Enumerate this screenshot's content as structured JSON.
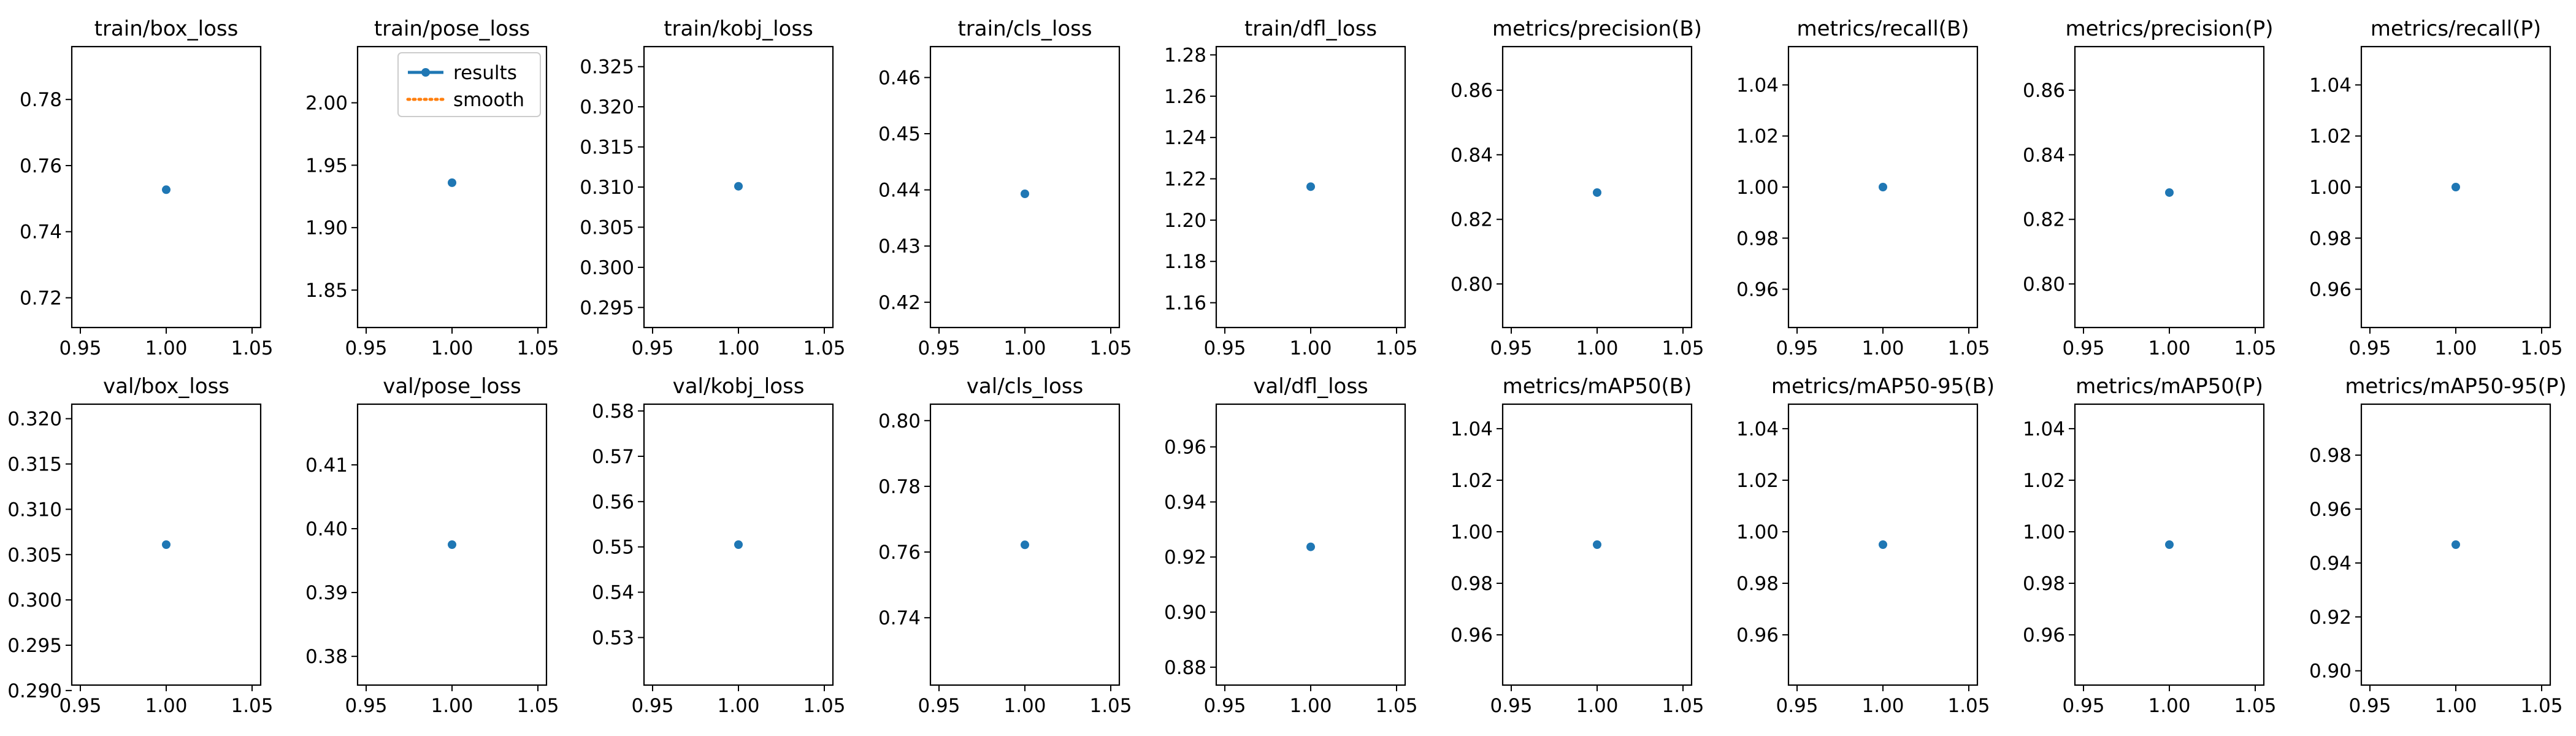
{
  "colors": {
    "results": "#1f77b4",
    "smooth": "#ff7f0e"
  },
  "legend": {
    "location": "upper-right",
    "panel_index": 1,
    "entries": [
      "results",
      "smooth"
    ]
  },
  "chart_data": [
    {
      "type": "scatter",
      "title": "train/box_loss",
      "x": [
        1.0
      ],
      "y": [
        0.7527
      ],
      "xlim": [
        0.945,
        1.055
      ],
      "ylim": [
        0.711,
        0.796
      ],
      "xticks": [
        0.95,
        1.0,
        1.05
      ],
      "yticks": [
        0.72,
        0.74,
        0.76,
        0.78
      ],
      "xtick_labels": [
        "0.95",
        "1.00",
        "1.05"
      ],
      "ytick_labels": [
        "0.72",
        "0.74",
        "0.76",
        "0.78"
      ]
    },
    {
      "type": "scatter",
      "title": "train/pose_loss",
      "x": [
        1.0
      ],
      "y": [
        1.936
      ],
      "xlim": [
        0.945,
        1.055
      ],
      "ylim": [
        1.82,
        2.045
      ],
      "xticks": [
        0.95,
        1.0,
        1.05
      ],
      "yticks": [
        1.85,
        1.9,
        1.95,
        2.0
      ],
      "xtick_labels": [
        "0.95",
        "1.00",
        "1.05"
      ],
      "ytick_labels": [
        "1.85",
        "1.90",
        "1.95",
        "2.00"
      ]
    },
    {
      "type": "scatter",
      "title": "train/kobj_loss",
      "x": [
        1.0
      ],
      "y": [
        0.3101
      ],
      "xlim": [
        0.945,
        1.055
      ],
      "ylim": [
        0.2925,
        0.3275
      ],
      "xticks": [
        0.95,
        1.0,
        1.05
      ],
      "yticks": [
        0.295,
        0.3,
        0.305,
        0.31,
        0.315,
        0.32,
        0.325
      ],
      "xtick_labels": [
        "0.95",
        "1.00",
        "1.05"
      ],
      "ytick_labels": [
        "0.295",
        "0.300",
        "0.305",
        "0.310",
        "0.315",
        "0.320",
        "0.325"
      ]
    },
    {
      "type": "scatter",
      "title": "train/cls_loss",
      "x": [
        1.0
      ],
      "y": [
        0.4393
      ],
      "xlim": [
        0.945,
        1.055
      ],
      "ylim": [
        0.4155,
        0.4655
      ],
      "xticks": [
        0.95,
        1.0,
        1.05
      ],
      "yticks": [
        0.42,
        0.43,
        0.44,
        0.45,
        0.46
      ],
      "xtick_labels": [
        "0.95",
        "1.00",
        "1.05"
      ],
      "ytick_labels": [
        "0.42",
        "0.43",
        "0.44",
        "0.45",
        "0.46"
      ]
    },
    {
      "type": "scatter",
      "title": "train/dfl_loss",
      "x": [
        1.0
      ],
      "y": [
        1.2162
      ],
      "xlim": [
        0.945,
        1.055
      ],
      "ylim": [
        1.148,
        1.284
      ],
      "xticks": [
        0.95,
        1.0,
        1.05
      ],
      "yticks": [
        1.16,
        1.18,
        1.2,
        1.22,
        1.24,
        1.26,
        1.28
      ],
      "xtick_labels": [
        "0.95",
        "1.00",
        "1.05"
      ],
      "ytick_labels": [
        "1.16",
        "1.18",
        "1.20",
        "1.22",
        "1.24",
        "1.26",
        "1.28"
      ]
    },
    {
      "type": "scatter",
      "title": "metrics/precision(B)",
      "x": [
        1.0
      ],
      "y": [
        0.8283
      ],
      "xlim": [
        0.945,
        1.055
      ],
      "ylim": [
        0.7865,
        0.8735
      ],
      "xticks": [
        0.95,
        1.0,
        1.05
      ],
      "yticks": [
        0.8,
        0.82,
        0.84,
        0.86
      ],
      "xtick_labels": [
        "0.95",
        "1.00",
        "1.05"
      ],
      "ytick_labels": [
        "0.80",
        "0.82",
        "0.84",
        "0.86"
      ]
    },
    {
      "type": "scatter",
      "title": "metrics/recall(B)",
      "x": [
        1.0
      ],
      "y": [
        1.0
      ],
      "xlim": [
        0.945,
        1.055
      ],
      "ylim": [
        0.945,
        1.055
      ],
      "xticks": [
        0.95,
        1.0,
        1.05
      ],
      "yticks": [
        0.96,
        0.98,
        1.0,
        1.02,
        1.04
      ],
      "xtick_labels": [
        "0.95",
        "1.00",
        "1.05"
      ],
      "ytick_labels": [
        "0.96",
        "0.98",
        "1.00",
        "1.02",
        "1.04"
      ]
    },
    {
      "type": "scatter",
      "title": "metrics/precision(P)",
      "x": [
        1.0
      ],
      "y": [
        0.8283
      ],
      "xlim": [
        0.945,
        1.055
      ],
      "ylim": [
        0.7865,
        0.8735
      ],
      "xticks": [
        0.95,
        1.0,
        1.05
      ],
      "yticks": [
        0.8,
        0.82,
        0.84,
        0.86
      ],
      "xtick_labels": [
        "0.95",
        "1.00",
        "1.05"
      ],
      "ytick_labels": [
        "0.80",
        "0.82",
        "0.84",
        "0.86"
      ]
    },
    {
      "type": "scatter",
      "title": "metrics/recall(P)",
      "x": [
        1.0
      ],
      "y": [
        1.0
      ],
      "xlim": [
        0.945,
        1.055
      ],
      "ylim": [
        0.945,
        1.055
      ],
      "xticks": [
        0.95,
        1.0,
        1.05
      ],
      "yticks": [
        0.96,
        0.98,
        1.0,
        1.02,
        1.04
      ],
      "xtick_labels": [
        "0.95",
        "1.00",
        "1.05"
      ],
      "ytick_labels": [
        "0.96",
        "0.98",
        "1.00",
        "1.02",
        "1.04"
      ]
    },
    {
      "type": "scatter",
      "title": "val/box_loss",
      "x": [
        1.0
      ],
      "y": [
        0.3061
      ],
      "xlim": [
        0.945,
        1.055
      ],
      "ylim": [
        0.2906,
        0.3216
      ],
      "xticks": [
        0.95,
        1.0,
        1.05
      ],
      "yticks": [
        0.29,
        0.295,
        0.3,
        0.305,
        0.31,
        0.315,
        0.32
      ],
      "xtick_labels": [
        "0.95",
        "1.00",
        "1.05"
      ],
      "ytick_labels": [
        "0.290",
        "0.295",
        "0.300",
        "0.305",
        "0.310",
        "0.315",
        "0.320"
      ]
    },
    {
      "type": "scatter",
      "title": "val/pose_loss",
      "x": [
        1.0
      ],
      "y": [
        0.3975
      ],
      "xlim": [
        0.945,
        1.055
      ],
      "ylim": [
        0.3755,
        0.4195
      ],
      "xticks": [
        0.95,
        1.0,
        1.05
      ],
      "yticks": [
        0.38,
        0.39,
        0.4,
        0.41
      ],
      "xtick_labels": [
        "0.95",
        "1.00",
        "1.05"
      ],
      "ytick_labels": [
        "0.38",
        "0.39",
        "0.40",
        "0.41"
      ]
    },
    {
      "type": "scatter",
      "title": "val/kobj_loss",
      "x": [
        1.0
      ],
      "y": [
        0.5505
      ],
      "xlim": [
        0.945,
        1.055
      ],
      "ylim": [
        0.5195,
        0.5815
      ],
      "xticks": [
        0.95,
        1.0,
        1.05
      ],
      "yticks": [
        0.53,
        0.54,
        0.55,
        0.56,
        0.57,
        0.58
      ],
      "xtick_labels": [
        "0.95",
        "1.00",
        "1.05"
      ],
      "ytick_labels": [
        "0.53",
        "0.54",
        "0.55",
        "0.56",
        "0.57",
        "0.58"
      ]
    },
    {
      "type": "scatter",
      "title": "val/cls_loss",
      "x": [
        1.0
      ],
      "y": [
        0.7622
      ],
      "xlim": [
        0.945,
        1.055
      ],
      "ylim": [
        0.7195,
        0.805
      ],
      "xticks": [
        0.95,
        1.0,
        1.05
      ],
      "yticks": [
        0.74,
        0.76,
        0.78,
        0.8
      ],
      "xtick_labels": [
        "0.95",
        "1.00",
        "1.05"
      ],
      "ytick_labels": [
        "0.74",
        "0.76",
        "0.78",
        "0.80"
      ]
    },
    {
      "type": "scatter",
      "title": "val/dfl_loss",
      "x": [
        1.0
      ],
      "y": [
        0.9237
      ],
      "xlim": [
        0.945,
        1.055
      ],
      "ylim": [
        0.8735,
        0.9755
      ],
      "xticks": [
        0.95,
        1.0,
        1.05
      ],
      "yticks": [
        0.88,
        0.9,
        0.92,
        0.94,
        0.96
      ],
      "xtick_labels": [
        "0.95",
        "1.00",
        "1.05"
      ],
      "ytick_labels": [
        "0.88",
        "0.90",
        "0.92",
        "0.94",
        "0.96"
      ]
    },
    {
      "type": "scatter",
      "title": "metrics/mAP50(B)",
      "x": [
        1.0
      ],
      "y": [
        0.995
      ],
      "xlim": [
        0.945,
        1.055
      ],
      "ylim": [
        0.9405,
        1.0495
      ],
      "xticks": [
        0.95,
        1.0,
        1.05
      ],
      "yticks": [
        0.96,
        0.98,
        1.0,
        1.02,
        1.04
      ],
      "xtick_labels": [
        "0.95",
        "1.00",
        "1.05"
      ],
      "ytick_labels": [
        "0.96",
        "0.98",
        "1.00",
        "1.02",
        "1.04"
      ]
    },
    {
      "type": "scatter",
      "title": "metrics/mAP50-95(B)",
      "x": [
        1.0
      ],
      "y": [
        0.995
      ],
      "xlim": [
        0.945,
        1.055
      ],
      "ylim": [
        0.9405,
        1.0495
      ],
      "xticks": [
        0.95,
        1.0,
        1.05
      ],
      "yticks": [
        0.96,
        0.98,
        1.0,
        1.02,
        1.04
      ],
      "xtick_labels": [
        "0.95",
        "1.00",
        "1.05"
      ],
      "ytick_labels": [
        "0.96",
        "0.98",
        "1.00",
        "1.02",
        "1.04"
      ]
    },
    {
      "type": "scatter",
      "title": "metrics/mAP50(P)",
      "x": [
        1.0
      ],
      "y": [
        0.995
      ],
      "xlim": [
        0.945,
        1.055
      ],
      "ylim": [
        0.9405,
        1.0495
      ],
      "xticks": [
        0.95,
        1.0,
        1.05
      ],
      "yticks": [
        0.96,
        0.98,
        1.0,
        1.02,
        1.04
      ],
      "xtick_labels": [
        "0.95",
        "1.00",
        "1.05"
      ],
      "ytick_labels": [
        "0.96",
        "0.98",
        "1.00",
        "1.02",
        "1.04"
      ]
    },
    {
      "type": "scatter",
      "title": "metrics/mAP50-95(P)",
      "x": [
        1.0
      ],
      "y": [
        0.9468
      ],
      "xlim": [
        0.945,
        1.055
      ],
      "ylim": [
        0.8947,
        0.9989
      ],
      "xticks": [
        0.95,
        1.0,
        1.05
      ],
      "yticks": [
        0.9,
        0.92,
        0.94,
        0.96,
        0.98
      ],
      "xtick_labels": [
        "0.95",
        "1.00",
        "1.05"
      ],
      "ytick_labels": [
        "0.90",
        "0.92",
        "0.94",
        "0.96",
        "0.98"
      ]
    }
  ]
}
